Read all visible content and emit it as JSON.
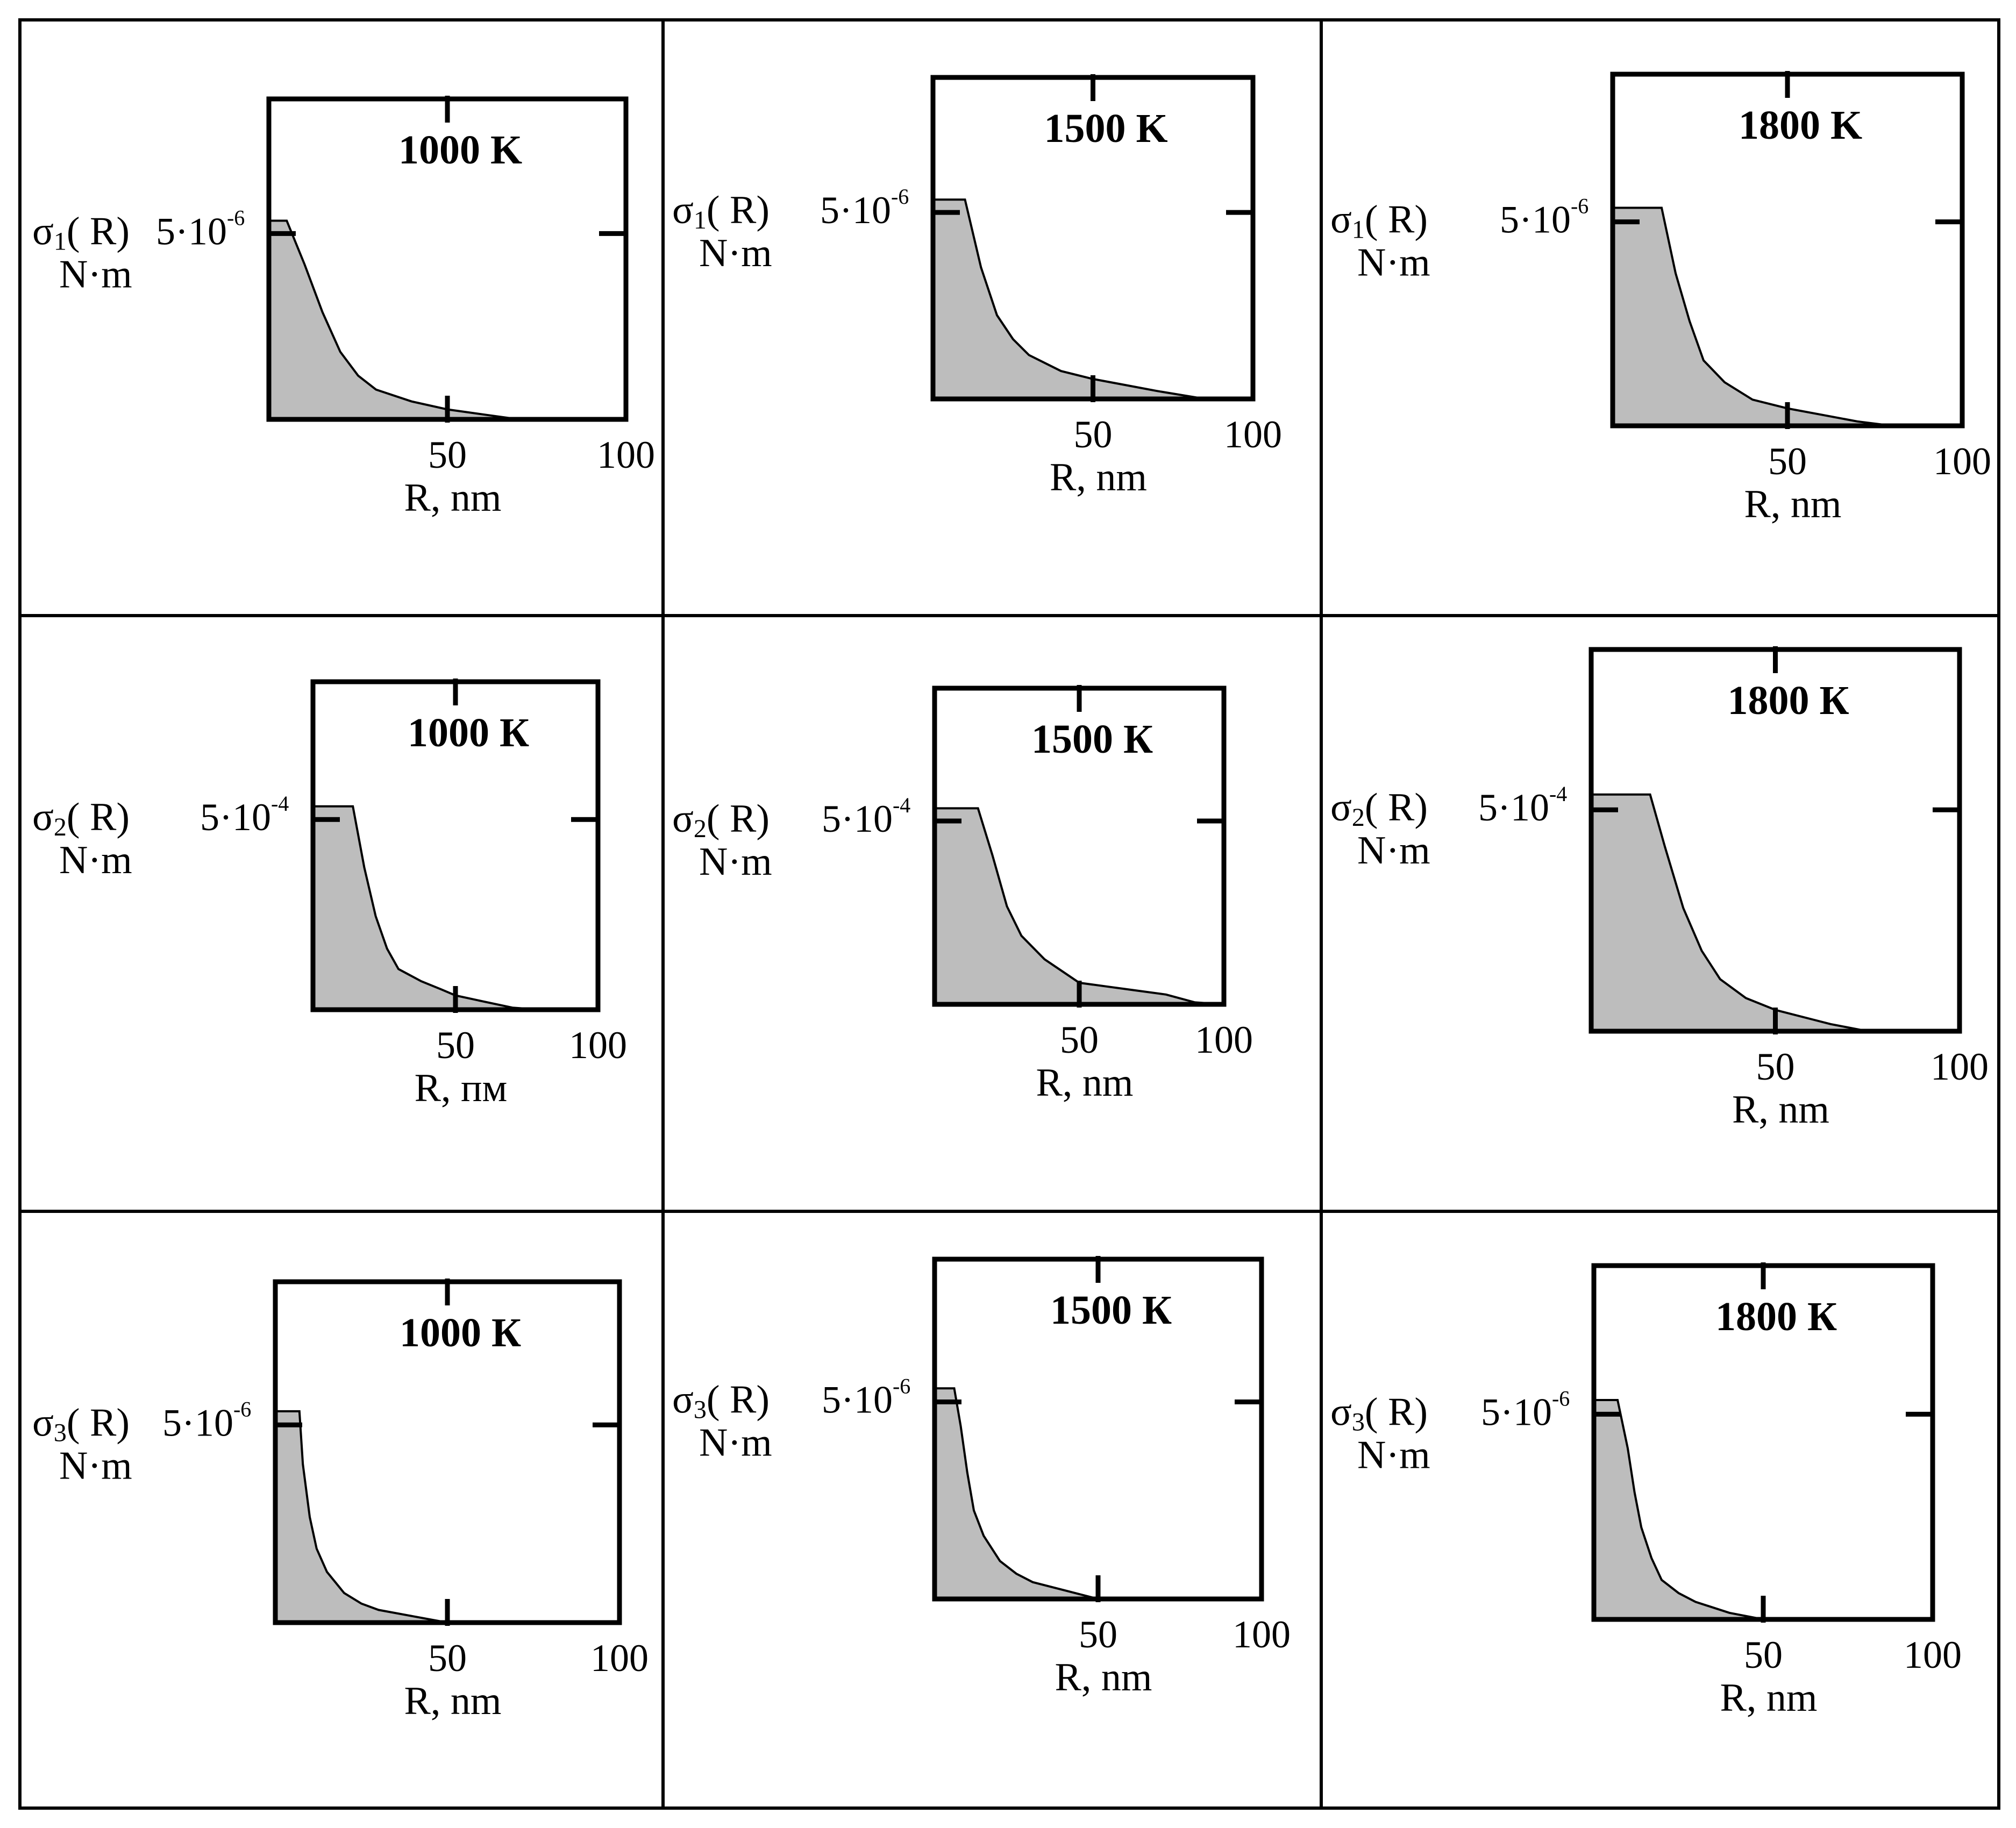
{
  "chart_data": [
    {
      "type": "area",
      "title": "1000 K",
      "ylabel": {
        "symbol": "σ",
        "sub": "1",
        "arg": "( R)"
      },
      "yunit": "N·m",
      "ytick": {
        "mant": "5·10",
        "exp": "-6"
      },
      "xtick_labels": [
        "50",
        "100"
      ],
      "xlabel": "R, nm",
      "xlim": [
        0,
        100
      ],
      "x": [
        0,
        5,
        10,
        15,
        20,
        25,
        30,
        40,
        50,
        60,
        70,
        100
      ],
      "y": [
        1,
        1,
        0.78,
        0.54,
        0.34,
        0.22,
        0.15,
        0.09,
        0.05,
        0.025,
        0,
        0
      ]
    },
    {
      "type": "area",
      "title": "1500 K",
      "ylabel": {
        "symbol": "σ",
        "sub": "1",
        "arg": "( R)"
      },
      "yunit": "N·m",
      "ytick": {
        "mant": "5·10",
        "exp": "-6"
      },
      "xtick_labels": [
        "50",
        "100"
      ],
      "xlabel": "R, nm",
      "xlim": [
        0,
        100
      ],
      "x": [
        0,
        10,
        15,
        20,
        25,
        30,
        40,
        50,
        60,
        70,
        85,
        100
      ],
      "y": [
        1,
        1,
        0.66,
        0.42,
        0.3,
        0.22,
        0.14,
        0.1,
        0.07,
        0.04,
        0,
        0
      ]
    },
    {
      "type": "area",
      "title": "1800 K",
      "ylabel": {
        "symbol": "σ",
        "sub": "1",
        "arg": "( R)"
      },
      "yunit": "N·m",
      "ytick": {
        "mant": "5·10",
        "exp": "-6"
      },
      "xtick_labels": [
        "50",
        "100"
      ],
      "xlabel": "R, nm",
      "xlim": [
        0,
        100
      ],
      "x": [
        0,
        14,
        18,
        22,
        26,
        32,
        40,
        50,
        60,
        70,
        80,
        100
      ],
      "y": [
        1,
        1,
        0.7,
        0.48,
        0.3,
        0.2,
        0.12,
        0.08,
        0.05,
        0.02,
        0,
        0
      ]
    },
    {
      "type": "area",
      "title": "1000 К",
      "ylabel": {
        "symbol": "σ",
        "sub": "2",
        "arg": "( R)"
      },
      "yunit": "N·m",
      "ytick": {
        "mant": "5·10",
        "exp": "-4"
      },
      "xtick_labels": [
        "50",
        "100"
      ],
      "xlabel": "R, пм",
      "xlim": [
        0,
        100
      ],
      "x": [
        0,
        14,
        18,
        22,
        26,
        30,
        38,
        45,
        50,
        60,
        70,
        80,
        100
      ],
      "y": [
        1,
        1,
        0.7,
        0.46,
        0.3,
        0.2,
        0.14,
        0.1,
        0.07,
        0.04,
        0.01,
        0,
        0
      ]
    },
    {
      "type": "area",
      "title": "1500 К",
      "ylabel": {
        "symbol": "σ",
        "sub": "2",
        "arg": "( R)"
      },
      "yunit": "N·m",
      "ytick": {
        "mant": "5·10",
        "exp": "-4"
      },
      "xtick_labels": [
        "50",
        "100"
      ],
      "xlabel": "R, nm",
      "xlim": [
        0,
        100
      ],
      "x": [
        0,
        15,
        20,
        25,
        30,
        38,
        45,
        50,
        60,
        70,
        80,
        90,
        100
      ],
      "y": [
        1,
        1,
        0.76,
        0.5,
        0.35,
        0.23,
        0.16,
        0.11,
        0.09,
        0.07,
        0.05,
        0.01,
        0
      ]
    },
    {
      "type": "area",
      "title": "1800 К",
      "ylabel": {
        "symbol": "σ",
        "sub": "2",
        "arg": "( R)"
      },
      "yunit": "N·m",
      "ytick": {
        "mant": "5·10",
        "exp": "-4"
      },
      "xtick_labels": [
        "50",
        "100"
      ],
      "xlabel": "R, nm",
      "xlim": [
        0,
        100
      ],
      "x": [
        0,
        16,
        20,
        25,
        30,
        35,
        42,
        50,
        60,
        65,
        75,
        100
      ],
      "y": [
        1,
        1,
        0.78,
        0.52,
        0.34,
        0.22,
        0.14,
        0.09,
        0.05,
        0.03,
        0,
        0
      ]
    },
    {
      "type": "area",
      "title": "1000 К",
      "ylabel": {
        "symbol": "σ",
        "sub": "3",
        "arg": "( R)"
      },
      "yunit": "N·m",
      "ytick": {
        "mant": "5·10",
        "exp": "-6"
      },
      "xtick_labels": [
        "50",
        "100"
      ],
      "xlabel": "R, nm",
      "xlim": [
        0,
        100
      ],
      "x": [
        0,
        7,
        8,
        10,
        12,
        15,
        20,
        25,
        30,
        40,
        50,
        100
      ],
      "y": [
        1,
        1,
        0.75,
        0.5,
        0.35,
        0.24,
        0.14,
        0.09,
        0.06,
        0.03,
        0,
        0
      ]
    },
    {
      "type": "area",
      "title": "1500 К",
      "ylabel": {
        "symbol": "σ",
        "sub": "3",
        "arg": "( R)"
      },
      "yunit": "N·m",
      "ytick": {
        "mant": "5·10",
        "exp": "-6"
      },
      "xtick_labels": [
        "50",
        "100"
      ],
      "xlabel": "R, nm",
      "xlim": [
        0,
        100
      ],
      "x": [
        0,
        6,
        8,
        10,
        12,
        15,
        20,
        25,
        30,
        40,
        50,
        100
      ],
      "y": [
        1,
        1,
        0.82,
        0.6,
        0.42,
        0.3,
        0.18,
        0.12,
        0.08,
        0.04,
        0,
        0
      ]
    },
    {
      "type": "area",
      "title": "1800 К",
      "ylabel": {
        "symbol": "σ",
        "sub": "3",
        "arg": "( R)"
      },
      "yunit": "N·m",
      "ytick": {
        "mant": "5·10",
        "exp": "-6"
      },
      "xtick_labels": [
        "50",
        "100"
      ],
      "xlabel": "R, nm",
      "xlim": [
        0,
        100
      ],
      "x": [
        0,
        7,
        10,
        12,
        14,
        17,
        20,
        25,
        30,
        40,
        50,
        100
      ],
      "y": [
        1,
        1,
        0.78,
        0.58,
        0.42,
        0.28,
        0.18,
        0.12,
        0.08,
        0.03,
        0,
        0
      ]
    }
  ]
}
